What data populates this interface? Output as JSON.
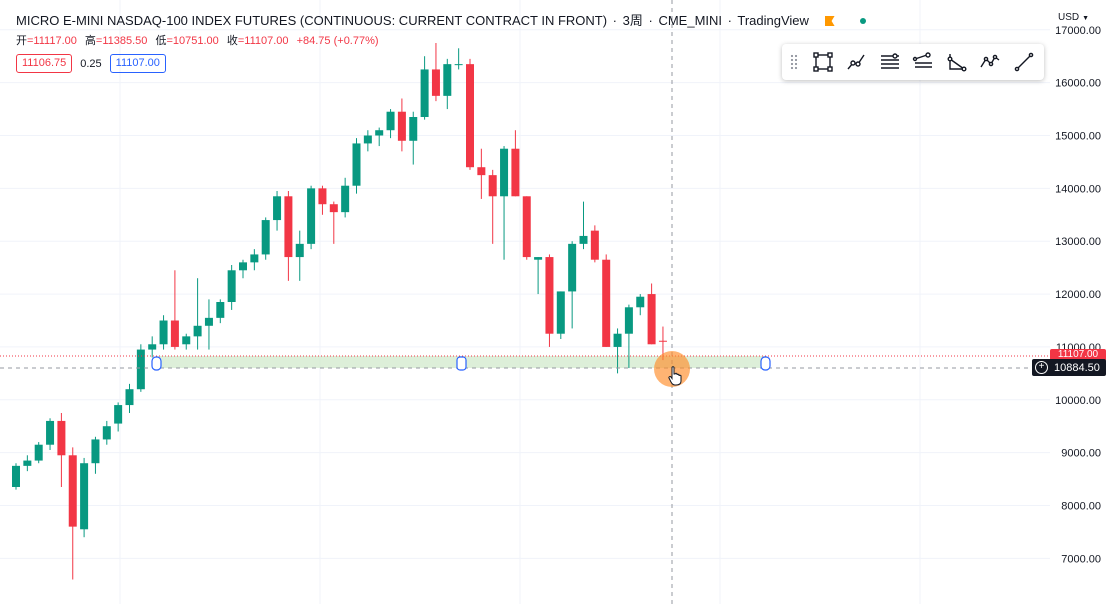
{
  "header": {
    "symbol": "MICRO E-MINI NASDAQ-100 INDEX FUTURES (CONTINUOUS: CURRENT CONTRACT IN FRONT)",
    "interval": "3周",
    "exchange": "CME_MINI",
    "source": "TradingView"
  },
  "ohlc": {
    "open_label": "开",
    "open": "=11117.00",
    "high_label": "高",
    "high": "=11385.50",
    "low_label": "低",
    "low": "=10751.00",
    "close_label": "收",
    "close": "=11107.00",
    "change": "+84.75 (+0.77%)"
  },
  "quotes": {
    "bid": "11106.75",
    "spread": "0.25",
    "ask": "11107.00"
  },
  "currency": "USD",
  "toolbar": {
    "tools": [
      "rectangle-icon",
      "trend-line-icon",
      "parallel-channel-icon",
      "fib-retracement-icon",
      "triangle-pattern-icon",
      "polyline-icon",
      "line-icon"
    ]
  },
  "price_axis": {
    "last_price": "11107.00",
    "crosshair_price": "10884.50"
  },
  "colors": {
    "up": "#089981",
    "down": "#f23645",
    "accent": "#2962ff"
  },
  "chart_data": {
    "type": "candlestick",
    "yticks": [
      7000,
      8000,
      9000,
      10000,
      11000,
      12000,
      13000,
      14000,
      15000,
      16000,
      17000
    ],
    "ylim": [
      6250,
      17450
    ],
    "candles": [
      {
        "o": 8350,
        "h": 8800,
        "l": 8300,
        "c": 8750
      },
      {
        "o": 8750,
        "h": 8950,
        "l": 8650,
        "c": 8850
      },
      {
        "o": 8850,
        "h": 9200,
        "l": 8800,
        "c": 9150
      },
      {
        "o": 9150,
        "h": 9650,
        "l": 9050,
        "c": 9600
      },
      {
        "o": 9600,
        "h": 9750,
        "l": 8350,
        "c": 8950
      },
      {
        "o": 8950,
        "h": 9100,
        "l": 6600,
        "c": 7600
      },
      {
        "o": 7550,
        "h": 8900,
        "l": 7400,
        "c": 8800
      },
      {
        "o": 8800,
        "h": 9300,
        "l": 8600,
        "c": 9250
      },
      {
        "o": 9250,
        "h": 9600,
        "l": 9150,
        "c": 9500
      },
      {
        "o": 9550,
        "h": 9950,
        "l": 9400,
        "c": 9900
      },
      {
        "o": 9900,
        "h": 10300,
        "l": 9750,
        "c": 10200
      },
      {
        "o": 10200,
        "h": 11050,
        "l": 10150,
        "c": 10950
      },
      {
        "o": 10950,
        "h": 11200,
        "l": 10800,
        "c": 11050
      },
      {
        "o": 11050,
        "h": 11600,
        "l": 10950,
        "c": 11500
      },
      {
        "o": 11500,
        "h": 12450,
        "l": 10950,
        "c": 11000
      },
      {
        "o": 11050,
        "h": 11250,
        "l": 10950,
        "c": 11200
      },
      {
        "o": 11200,
        "h": 12300,
        "l": 10950,
        "c": 11400
      },
      {
        "o": 11400,
        "h": 11900,
        "l": 10950,
        "c": 11550
      },
      {
        "o": 11550,
        "h": 11900,
        "l": 11450,
        "c": 11850
      },
      {
        "o": 11850,
        "h": 12550,
        "l": 11700,
        "c": 12450
      },
      {
        "o": 12450,
        "h": 12650,
        "l": 12300,
        "c": 12600
      },
      {
        "o": 12600,
        "h": 12850,
        "l": 12450,
        "c": 12750
      },
      {
        "o": 12750,
        "h": 13450,
        "l": 12650,
        "c": 13400
      },
      {
        "o": 13400,
        "h": 13950,
        "l": 13200,
        "c": 13850
      },
      {
        "o": 13850,
        "h": 13950,
        "l": 12250,
        "c": 12700
      },
      {
        "o": 12700,
        "h": 13200,
        "l": 12250,
        "c": 12950
      },
      {
        "o": 12950,
        "h": 14050,
        "l": 12850,
        "c": 14000
      },
      {
        "o": 14000,
        "h": 14050,
        "l": 13500,
        "c": 13700
      },
      {
        "o": 13700,
        "h": 13750,
        "l": 12950,
        "c": 13550
      },
      {
        "o": 13550,
        "h": 14200,
        "l": 13450,
        "c": 14050
      },
      {
        "o": 14050,
        "h": 14950,
        "l": 13900,
        "c": 14850
      },
      {
        "o": 14850,
        "h": 15100,
        "l": 14700,
        "c": 15000
      },
      {
        "o": 15000,
        "h": 15150,
        "l": 14800,
        "c": 15100
      },
      {
        "o": 15100,
        "h": 15500,
        "l": 14950,
        "c": 15450
      },
      {
        "o": 15450,
        "h": 15700,
        "l": 14700,
        "c": 14900
      },
      {
        "o": 14900,
        "h": 15450,
        "l": 14450,
        "c": 15350
      },
      {
        "o": 15350,
        "h": 16500,
        "l": 15300,
        "c": 16250
      },
      {
        "o": 16250,
        "h": 16750,
        "l": 15650,
        "c": 15750
      },
      {
        "o": 15750,
        "h": 16450,
        "l": 15500,
        "c": 16350
      },
      {
        "o": 16350,
        "h": 16650,
        "l": 16250,
        "c": 16350
      },
      {
        "o": 16350,
        "h": 16450,
        "l": 14350,
        "c": 14400
      },
      {
        "o": 14400,
        "h": 14750,
        "l": 13800,
        "c": 14250
      },
      {
        "o": 14250,
        "h": 14350,
        "l": 12950,
        "c": 13850
      },
      {
        "o": 13850,
        "h": 14800,
        "l": 12650,
        "c": 14750
      },
      {
        "o": 14750,
        "h": 15100,
        "l": 13850,
        "c": 13850
      },
      {
        "o": 13850,
        "h": 13850,
        "l": 12650,
        "c": 12700
      },
      {
        "o": 12650,
        "h": 12700,
        "l": 12000,
        "c": 12700
      },
      {
        "o": 12700,
        "h": 12750,
        "l": 11000,
        "c": 11250
      },
      {
        "o": 11250,
        "h": 12050,
        "l": 11150,
        "c": 12050
      },
      {
        "o": 12050,
        "h": 13000,
        "l": 11350,
        "c": 12950
      },
      {
        "o": 12950,
        "h": 13750,
        "l": 12850,
        "c": 13100
      },
      {
        "o": 13200,
        "h": 13300,
        "l": 12600,
        "c": 12650
      },
      {
        "o": 12650,
        "h": 12750,
        "l": 11000,
        "c": 11000
      },
      {
        "o": 11000,
        "h": 11350,
        "l": 10500,
        "c": 11250
      },
      {
        "o": 11250,
        "h": 11800,
        "l": 10600,
        "c": 11750
      },
      {
        "o": 11750,
        "h": 12000,
        "l": 11600,
        "c": 11950
      },
      {
        "o": 12000,
        "h": 12200,
        "l": 11050,
        "c": 11050
      },
      {
        "o": 11117,
        "h": 11385.5,
        "l": 10751,
        "c": 11107
      }
    ],
    "horizontal_lines": [
      11107,
      10884.5
    ]
  }
}
